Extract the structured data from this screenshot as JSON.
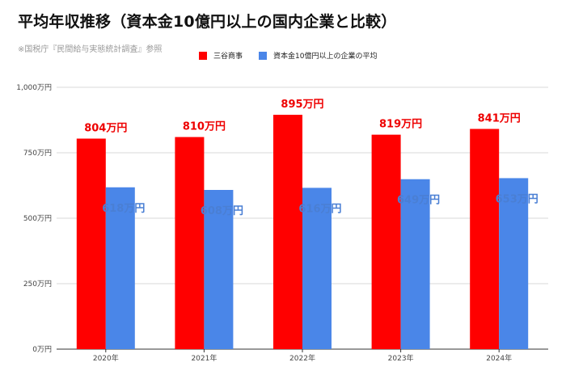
{
  "header": {
    "title": "平均年収推移（資本金10億円以上の国内企業と比較）",
    "source": "※国税庁『民間給与実態統計調査』参照"
  },
  "chart_data": {
    "type": "bar",
    "title": "平均年収推移（資本金10億円以上の国内企業と比較）",
    "xlabel": "",
    "ylabel": "",
    "ylim": [
      0,
      1000
    ],
    "y_ticks": [
      0,
      250,
      500,
      750,
      1000
    ],
    "y_tick_labels": [
      "0万円",
      "250万円",
      "500万円",
      "750万円",
      "1,000万円"
    ],
    "categories": [
      "2020年",
      "2021年",
      "2022年",
      "2023年",
      "2024年"
    ],
    "grid": true,
    "legend_position": "top",
    "series": [
      {
        "name": "三谷商事",
        "color": "#ff0000",
        "label_color": "#ee0000",
        "values": [
          804,
          810,
          895,
          819,
          841
        ],
        "labels": [
          "804万円",
          "810万円",
          "895万円",
          "819万円",
          "841万円"
        ]
      },
      {
        "name": "資本金10億円以上の企業の平均",
        "color": "#4a86e8",
        "label_color": "#4a7fd4",
        "values": [
          618,
          608,
          616,
          649,
          653
        ],
        "labels": [
          "618万円",
          "608万円",
          "616万円",
          "649万円",
          "653万円"
        ]
      }
    ]
  }
}
